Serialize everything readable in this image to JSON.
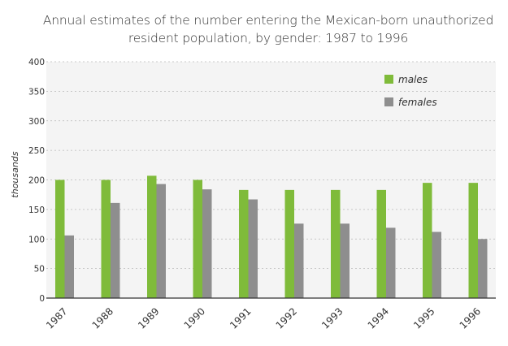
{
  "chart_data": {
    "type": "bar",
    "title": "Annual estimates of the number entering the Mexican-born unauthorized resident population, by gender: 1987 to 1996",
    "title_lines": [
      "Annual estimates of the number entering the Mexican-born unauthorized",
      "resident population, by gender: 1987 to 1996"
    ],
    "xlabel": "",
    "ylabel": "thousands",
    "ylim": [
      0,
      400
    ],
    "yticks": [
      0,
      50,
      100,
      150,
      200,
      250,
      300,
      350,
      400
    ],
    "grid": true,
    "legend_position": "top-right",
    "categories": [
      "1987",
      "1988",
      "1989",
      "1990",
      "1991",
      "1992",
      "1993",
      "1994",
      "1995",
      "1996"
    ],
    "series": [
      {
        "name": "males",
        "color": "#7fbb3a",
        "values": [
          200,
          200,
          207,
          200,
          183,
          183,
          183,
          183,
          195,
          195
        ]
      },
      {
        "name": "females",
        "color": "#8e8e8e",
        "values": [
          106,
          161,
          193,
          184,
          167,
          126,
          126,
          119,
          112,
          100
        ]
      }
    ]
  }
}
